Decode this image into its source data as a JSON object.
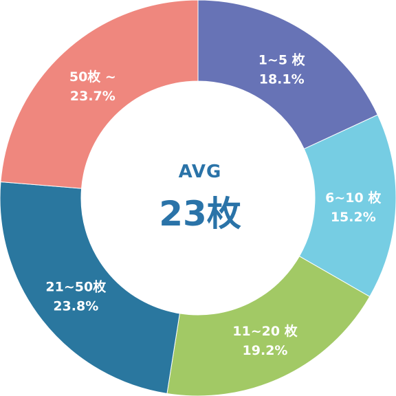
{
  "chart_data": {
    "type": "pie",
    "donut": true,
    "center": {
      "label": "AVG",
      "value": "23枚"
    },
    "slices": [
      {
        "label": "1~5 枚",
        "percent_text": "18.1%",
        "value": 18.1,
        "color": "#6773b6"
      },
      {
        "label": "6~10 枚",
        "percent_text": "15.2%",
        "value": 15.2,
        "color": "#76cde3"
      },
      {
        "label": "11~20 枚",
        "percent_text": "19.2%",
        "value": 19.2,
        "color": "#a2c965"
      },
      {
        "label": "21~50枚",
        "percent_text": "23.8%",
        "value": 23.8,
        "color": "#2a779f"
      },
      {
        "label": "50枚 ~",
        "percent_text": "23.7%",
        "value": 23.7,
        "color": "#ef877e"
      }
    ]
  }
}
